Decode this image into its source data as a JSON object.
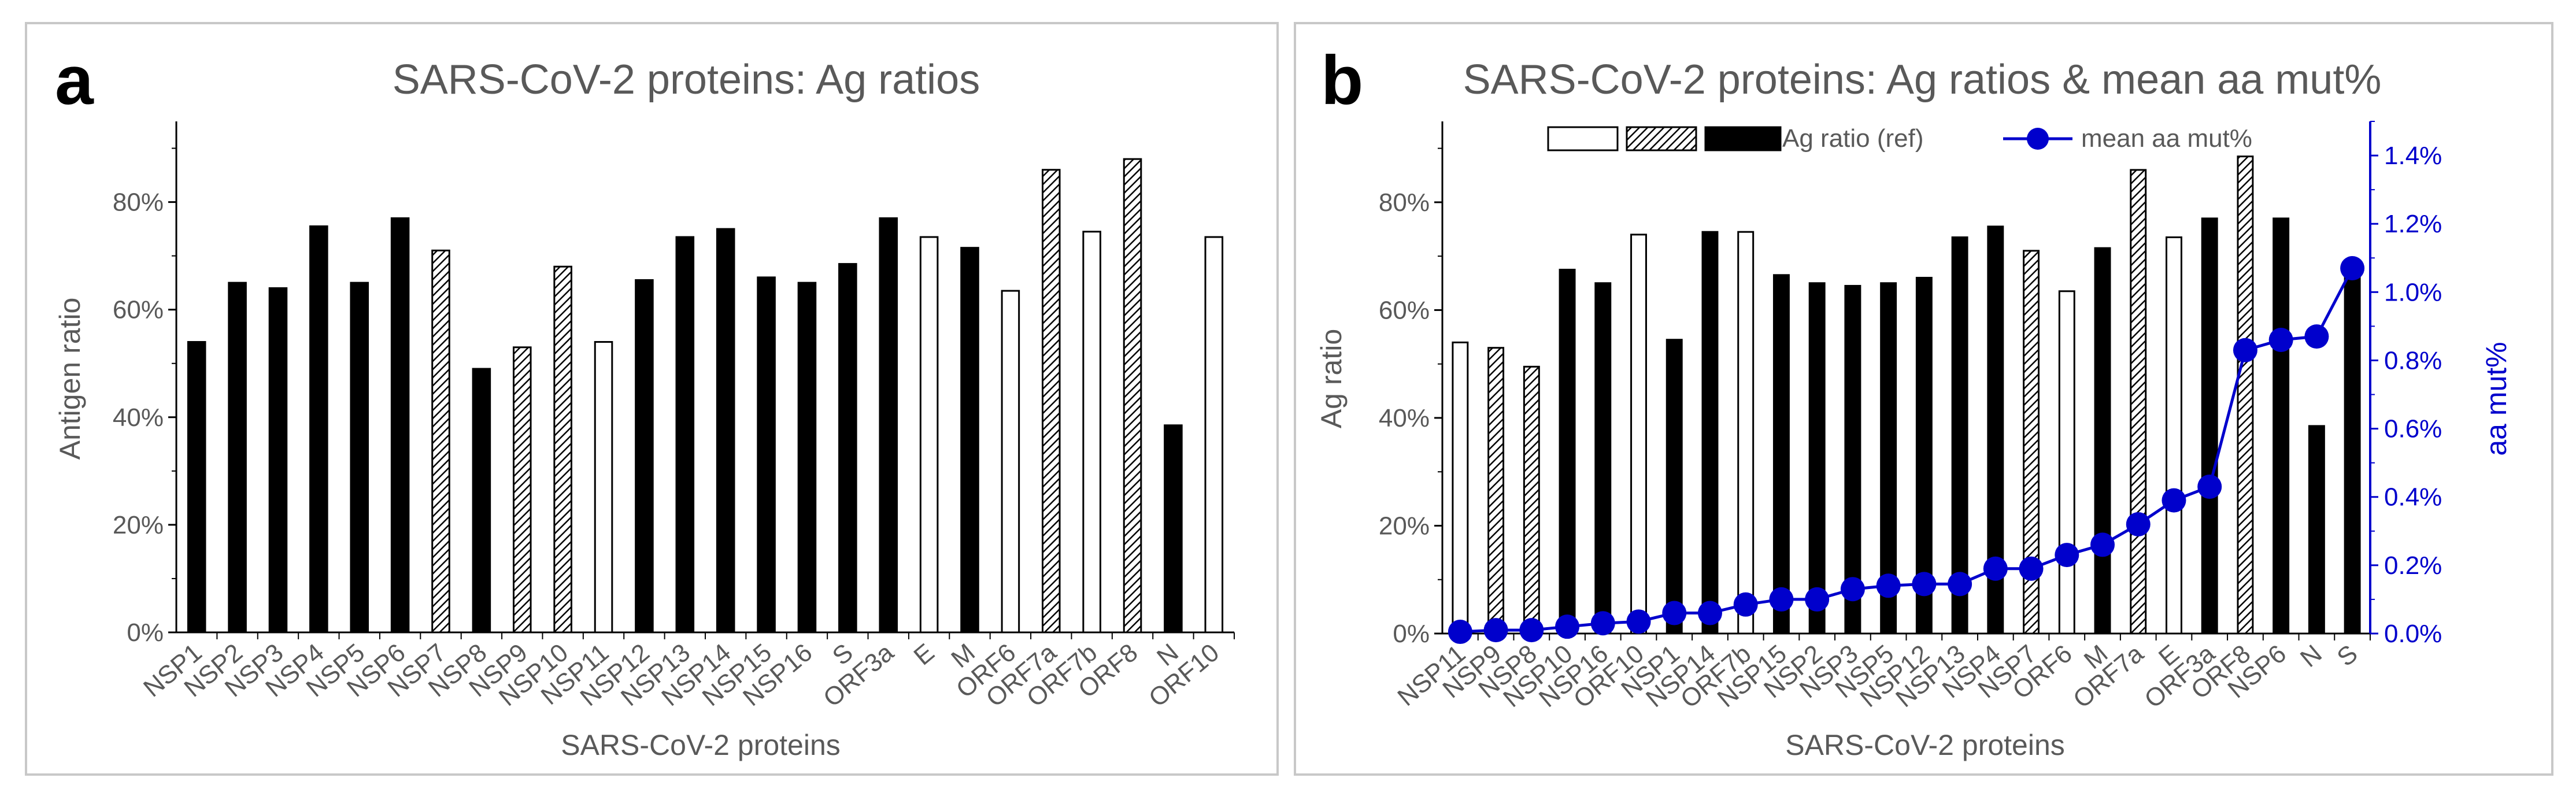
{
  "colors": {
    "bar_solid": "#000000",
    "bar_open": "#ffffff",
    "bar_outline": "#000000",
    "line_blue": "#0000cc",
    "text_gray": "#595959"
  },
  "chart_data": [
    {
      "panel": "a",
      "type": "bar",
      "title": "SARS-CoV-2 proteins: Ag ratios",
      "xlabel": "SARS-CoV-2 proteins",
      "ylabel": "Antigen ratio",
      "ylim": [
        0,
        95
      ],
      "yticks": [
        "0%",
        "20%",
        "40%",
        "60%",
        "80%"
      ],
      "categories": [
        "NSP1",
        "NSP2",
        "NSP3",
        "NSP4",
        "NSP5",
        "NSP6",
        "NSP7",
        "NSP8",
        "NSP9",
        "NSP10",
        "NSP11",
        "NSP12",
        "NSP13",
        "NSP14",
        "NSP15",
        "NSP16",
        "S",
        "ORF3a",
        "E",
        "M",
        "ORF6",
        "ORF7a",
        "ORF7b",
        "ORF8",
        "N",
        "ORF10"
      ],
      "values": [
        54,
        65,
        64,
        75.5,
        65,
        77,
        71,
        49,
        53,
        68,
        54,
        65.5,
        73.5,
        75,
        66,
        65,
        68.5,
        77,
        73.5,
        71.5,
        63.5,
        86,
        74.5,
        88,
        38.5,
        73.5
      ],
      "styles": [
        "solid",
        "solid",
        "solid",
        "solid",
        "solid",
        "solid",
        "hatched",
        "solid",
        "hatched",
        "hatched",
        "open",
        "solid",
        "solid",
        "solid",
        "solid",
        "solid",
        "solid",
        "solid",
        "open",
        "solid",
        "open",
        "hatched",
        "open",
        "hatched",
        "solid",
        "open"
      ]
    },
    {
      "panel": "b",
      "type": "bar+line",
      "title": "SARS-CoV-2 proteins: Ag ratios & mean aa mut%",
      "xlabel": "SARS-CoV-2 proteins",
      "ylabel": "Ag ratio",
      "ylabel_right": "aa mut%",
      "ylim": [
        0,
        95
      ],
      "ylim_right": [
        0,
        1.5
      ],
      "yticks": [
        "0%",
        "20%",
        "40%",
        "60%",
        "80%"
      ],
      "yticks_right": [
        "0.0%",
        "0.2%",
        "0.4%",
        "0.6%",
        "0.8%",
        "1.0%",
        "1.2%",
        "1.4%"
      ],
      "legend": {
        "bar_label": "Ag ratio (ref)",
        "line_label": "mean aa mut%",
        "position": "top-center"
      },
      "categories": [
        "NSP11",
        "NSP9",
        "NSP8",
        "NSP10",
        "NSP16",
        "ORF10",
        "NSP1",
        "NSP14",
        "ORF7b",
        "NSP15",
        "NSP2",
        "NSP3",
        "NSP5",
        "NSP12",
        "NSP13",
        "NSP4",
        "NSP7",
        "ORF6",
        "M",
        "ORF7a",
        "E",
        "ORF3a",
        "ORF8",
        "NSP6",
        "N",
        "S"
      ],
      "values": [
        54,
        53,
        49.5,
        67.5,
        65,
        74,
        54.5,
        74.5,
        74.5,
        66.5,
        65,
        64.5,
        65,
        66,
        73.5,
        75.5,
        71,
        63.5,
        71.5,
        86,
        73.5,
        77,
        88.5,
        77,
        38.5,
        69
      ],
      "styles": [
        "open",
        "hatched",
        "hatched",
        "solid",
        "solid",
        "open",
        "solid",
        "solid",
        "open",
        "solid",
        "solid",
        "solid",
        "solid",
        "solid",
        "solid",
        "solid",
        "hatched",
        "open",
        "solid",
        "hatched",
        "open",
        "solid",
        "hatched",
        "solid",
        "solid",
        "solid"
      ],
      "mean_aa_mut": [
        0.005,
        0.01,
        0.01,
        0.02,
        0.03,
        0.035,
        0.06,
        0.06,
        0.085,
        0.1,
        0.1,
        0.13,
        0.14,
        0.145,
        0.145,
        0.19,
        0.19,
        0.23,
        0.26,
        0.32,
        0.39,
        0.43,
        0.83,
        0.86,
        0.87,
        1.07
      ]
    }
  ]
}
